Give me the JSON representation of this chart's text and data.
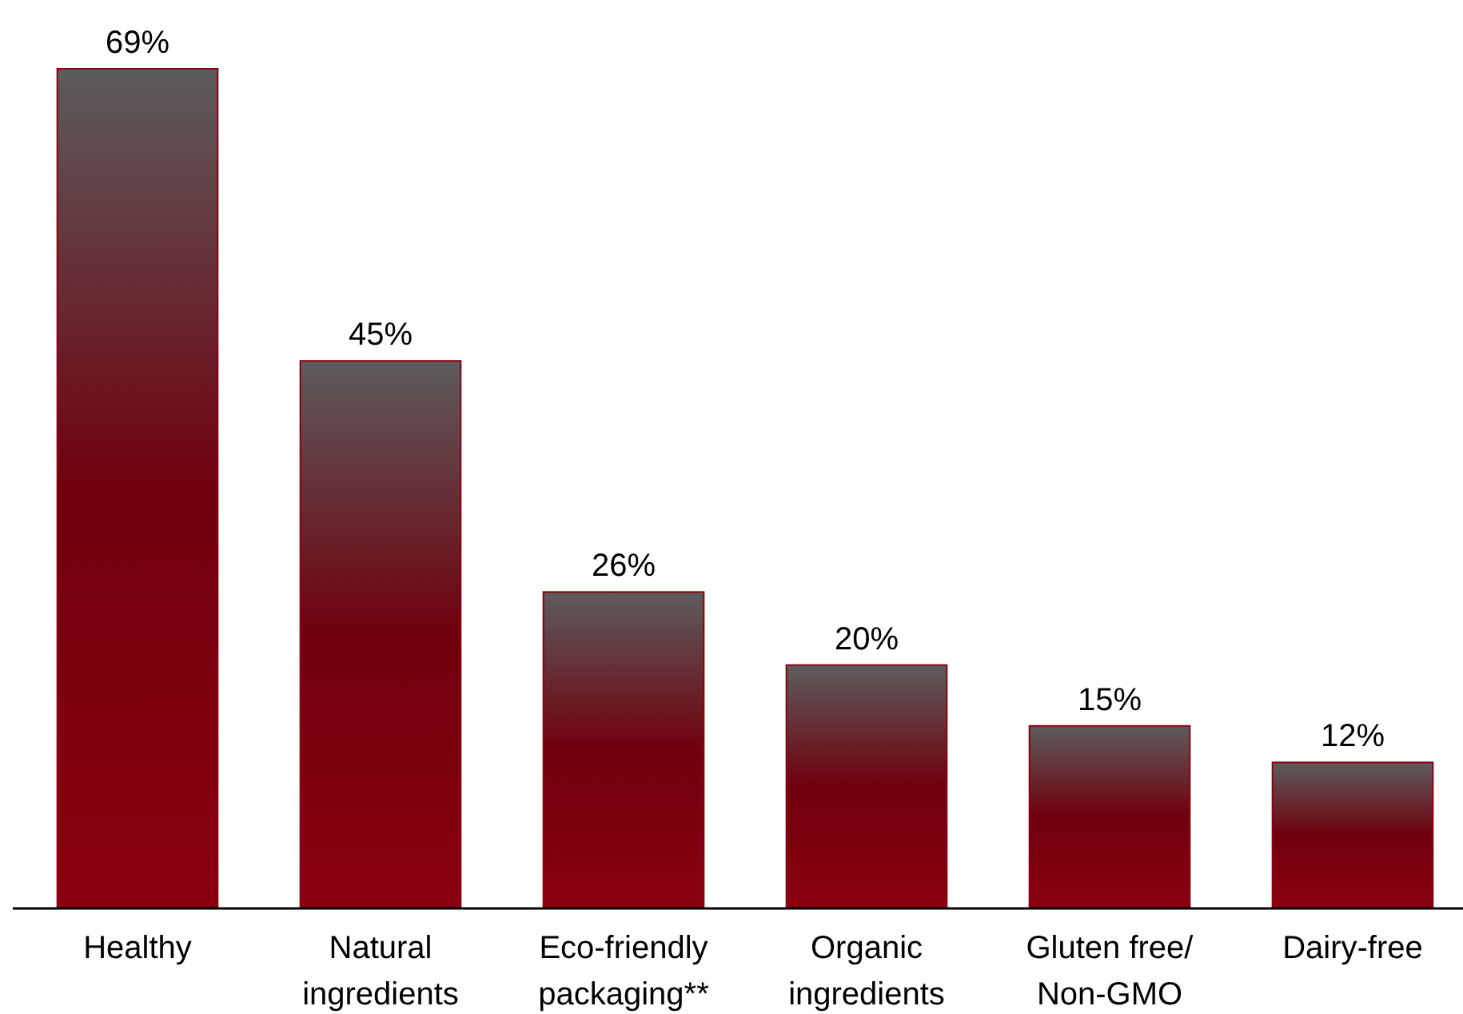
{
  "chart_data": {
    "type": "bar",
    "categories": [
      "Healthy",
      "Natural ingredients",
      "Eco-friendly packaging**",
      "Organic ingredients",
      "Gluten free/ Non-GMO",
      "Dairy-free"
    ],
    "values": [
      69,
      45,
      26,
      20,
      15,
      12
    ],
    "value_labels": [
      "69%",
      "45%",
      "26%",
      "20%",
      "15%",
      "12%"
    ],
    "color": "#8b0010"
  }
}
